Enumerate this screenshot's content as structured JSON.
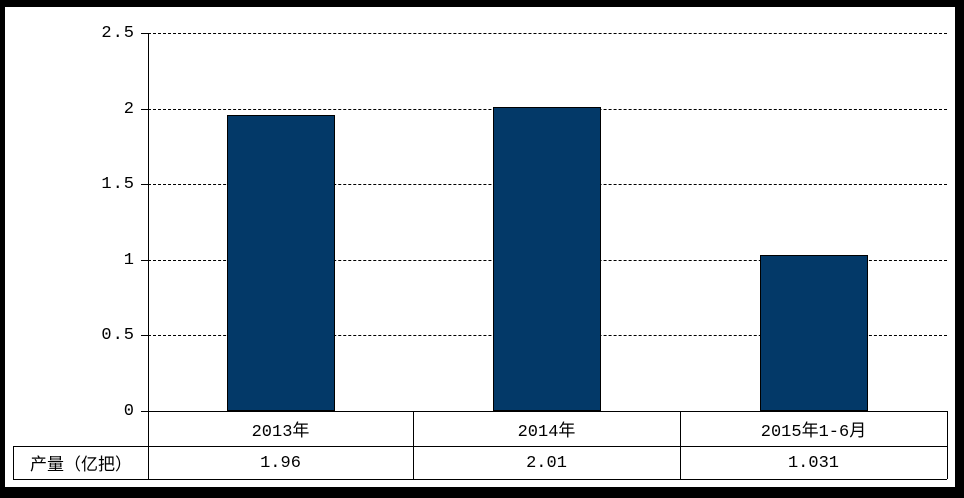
{
  "chart_data": {
    "type": "bar",
    "title": "",
    "xlabel": "",
    "ylabel": "",
    "categories": [
      "2013年",
      "2014年",
      "2015年1-6月"
    ],
    "series": [
      {
        "name": "产量（亿把）",
        "values": [
          1.96,
          2.01,
          1.031
        ],
        "display_values": [
          "1.96",
          "2.01",
          "1.031"
        ]
      }
    ],
    "ylim": [
      0,
      2.5
    ],
    "y_ticks": [
      0,
      0.5,
      1,
      1.5,
      2,
      2.5
    ],
    "y_tick_labels": [
      "0",
      "0.5",
      "1",
      "1.5",
      "2",
      "2.5"
    ],
    "grid": "horizontal-dashed",
    "legend_position": "none",
    "data_table": {
      "row_label": "产量（亿把）",
      "rows": [
        [
          "1.96",
          "2.01",
          "1.031"
        ]
      ]
    },
    "colors": {
      "bar_fill": "#033968",
      "bar_border": "#000000",
      "axis_line": "#000000",
      "background": "#ffffff",
      "outer_frame": "#000000"
    }
  }
}
